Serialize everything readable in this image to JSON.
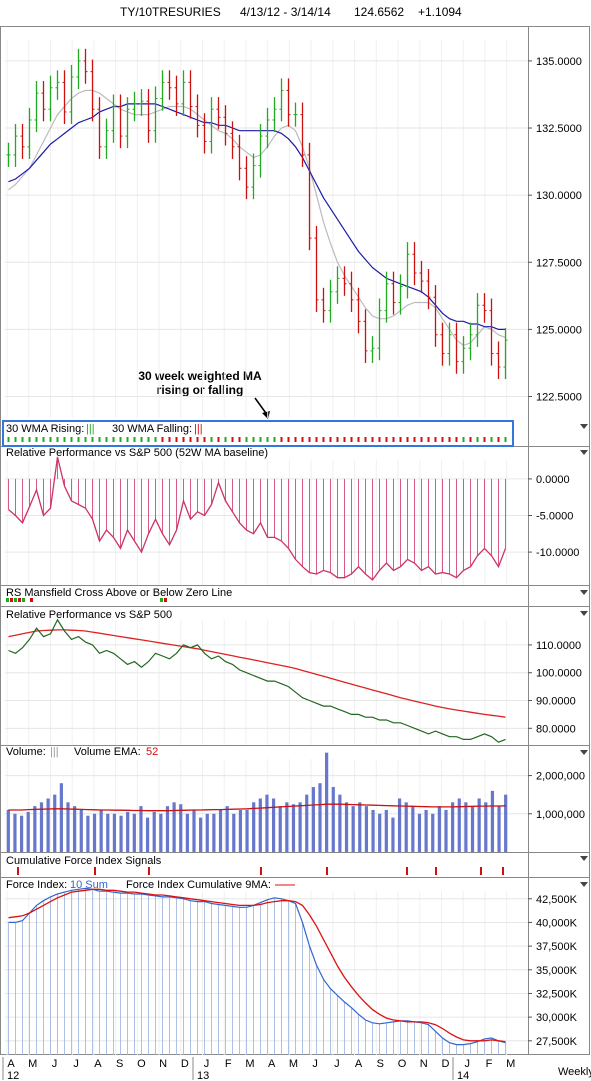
{
  "header": {
    "symbol": "TY/10TRESURIES",
    "range": "4/13/12 - 3/14/14",
    "price": "124.6562",
    "change": "+1.1094"
  },
  "annotation": {
    "line1": "30 week weighted MA",
    "line2": "rising or falling"
  },
  "colors": {
    "up": "#22aa22",
    "down": "#cc1111",
    "ma30": "#1a1aaa",
    "ma10": "#bbbbbb",
    "rs": "#cc3366",
    "rs_ma": "#dd2222",
    "rs_line": "#226622",
    "vol": "#6677cc",
    "vol_ema": "#cc1111",
    "fi": "#3366cc",
    "fi_ma": "#dd1111",
    "wma_box": "#3377dd"
  },
  "panels": {
    "wma": {
      "rising_label": "30 WMA Rising:",
      "rising_glyph": "|||",
      "falling_label": "30 WMA Falling:",
      "falling_glyph": "|||"
    },
    "rs52": {
      "title": "Relative Performance vs S&P 500 (52W MA baseline)"
    },
    "mansfield": {
      "title": "RS Mansfield Cross Above or Below Zero Line"
    },
    "rs": {
      "title": "Relative Performance vs S&P 500"
    },
    "volume": {
      "title": "Volume:",
      "glyph": "|||",
      "ema_label": "Volume EMA:",
      "ema_value": "52"
    },
    "cfis": {
      "title": "Cumulative Force Index Signals"
    },
    "fi": {
      "title": "Force Index:",
      "sum": "10 Sum",
      "ma_label": "Force Index Cumulative 9MA:"
    }
  },
  "xaxis": {
    "months": [
      "A",
      "M",
      "J",
      "J",
      "A",
      "S",
      "O",
      "N",
      "D",
      "J",
      "F",
      "M",
      "A",
      "M",
      "J",
      "J",
      "A",
      "S",
      "O",
      "N",
      "D",
      "J",
      "F",
      "M"
    ],
    "years": [
      "12",
      "13",
      "14"
    ],
    "period": "Weekly"
  },
  "chart_data": [
    {
      "type": "ohlc",
      "title": "TY/10TRESURIES",
      "ticks": [
        "135.0000",
        "132.5000",
        "130.0000",
        "127.5000",
        "125.0000",
        "122.5000"
      ],
      "tick_values": [
        135,
        132.5,
        130,
        127.5,
        125,
        122.5
      ],
      "ylim": [
        121.7,
        136.3
      ],
      "close": [
        131.5,
        132.2,
        131.8,
        132.8,
        133.8,
        133.2,
        134.0,
        134.2,
        133.1,
        134.4,
        135.0,
        134.6,
        133.2,
        131.8,
        132.4,
        133.3,
        132.2,
        133.2,
        133.4,
        133.5,
        132.4,
        133.6,
        134.2,
        134.0,
        133.4,
        134.2,
        133.3,
        132.6,
        132.0,
        133.2,
        132.9,
        132.3,
        131.8,
        131.0,
        130.3,
        131.1,
        132.2,
        132.8,
        133.2,
        133.9,
        133.0,
        133.0,
        131.5,
        128.4,
        126.1,
        125.7,
        126.4,
        126.9,
        126.7,
        126.1,
        125.3,
        124.2,
        124.3,
        125.7,
        126.7,
        126.0,
        126.6,
        127.8,
        127.1,
        126.8,
        126.2,
        124.8,
        124.1,
        124.8,
        123.8,
        124.3,
        124.8,
        125.9,
        125.7,
        124.1,
        123.6,
        124.6
      ],
      "ma30": [
        130.5,
        130.6,
        130.8,
        131.0,
        131.3,
        131.6,
        131.9,
        132.1,
        132.3,
        132.5,
        132.7,
        132.8,
        132.9,
        133.1,
        133.2,
        133.3,
        133.3,
        133.4,
        133.4,
        133.4,
        133.4,
        133.4,
        133.3,
        133.2,
        133.1,
        133.0,
        132.9,
        132.8,
        132.7,
        132.7,
        132.6,
        132.6,
        132.5,
        132.4,
        132.4,
        132.4,
        132.4,
        132.4,
        132.4,
        132.3,
        132.1,
        131.8,
        131.4,
        130.9,
        130.4,
        129.9,
        129.5,
        129.1,
        128.7,
        128.3,
        127.9,
        127.6,
        127.3,
        127.1,
        126.9,
        126.8,
        126.7,
        126.6,
        126.5,
        126.4,
        126.2,
        125.9,
        125.6,
        125.4,
        125.3,
        125.3,
        125.2,
        125.2,
        125.1,
        125.1,
        125.0,
        125.0
      ],
      "ma10": [
        130.2,
        130.4,
        130.7,
        131.0,
        131.5,
        132.0,
        132.5,
        133.0,
        133.3,
        133.6,
        133.8,
        133.9,
        133.9,
        133.8,
        133.6,
        133.4,
        133.2,
        133.1,
        133.0,
        133.0,
        133.0,
        133.1,
        133.2,
        133.3,
        133.3,
        133.3,
        133.2,
        133.0,
        132.8,
        132.6,
        132.4,
        132.3,
        132.1,
        131.8,
        131.6,
        131.4,
        131.5,
        131.8,
        132.2,
        132.5,
        132.6,
        132.4,
        131.8,
        131.0,
        130.0,
        129.0,
        128.2,
        127.5,
        127.0,
        126.6,
        126.2,
        125.8,
        125.5,
        125.4,
        125.4,
        125.5,
        125.7,
        125.9,
        126.0,
        126.0,
        126.0,
        125.8,
        125.4,
        125.0,
        124.6,
        124.4,
        124.5,
        124.8,
        125.1,
        125.0,
        124.8,
        124.7
      ]
    },
    {
      "type": "bar",
      "title": "Relative Performance vs S&P 500 (52W MA baseline)",
      "ticks": [
        "0.0000",
        "-5.0000",
        "-10.0000"
      ],
      "tick_values": [
        0,
        -5,
        -10
      ],
      "ylim": [
        -14.5,
        4.5
      ],
      "values": [
        -4.2,
        -5.0,
        -6.0,
        -3.8,
        -1.5,
        -5.0,
        -4.0,
        3.0,
        -1.0,
        -3.0,
        -3.5,
        -4.0,
        -5.5,
        -8.5,
        -7.0,
        -8.0,
        -9.5,
        -7.0,
        -8.5,
        -10.0,
        -7.5,
        -5.5,
        -7.5,
        -9.0,
        -7.0,
        -3.0,
        -5.5,
        -4.5,
        -5.0,
        -3.5,
        -0.5,
        -3.0,
        -4.5,
        -6.0,
        -7.0,
        -7.5,
        -6.0,
        -8.0,
        -8.0,
        -8.5,
        -9.5,
        -11.0,
        -12.0,
        -12.8,
        -13.0,
        -12.5,
        -12.8,
        -13.5,
        -13.5,
        -13.0,
        -12.0,
        -13.0,
        -13.8,
        -12.5,
        -11.5,
        -12.5,
        -12.0,
        -11.0,
        -11.5,
        -12.5,
        -12.0,
        -13.0,
        -12.8,
        -13.0,
        -13.5,
        -12.5,
        -12.0,
        -10.5,
        -9.5,
        -10.5,
        -12.0,
        -9.5
      ]
    },
    {
      "type": "signal",
      "title": "RS Mansfield Cross Above or Below Zero Line"
    },
    {
      "type": "line",
      "title": "Relative Performance vs S&P 500",
      "ticks": [
        "110.0000",
        "100.0000",
        "90.0000",
        "80.0000"
      ],
      "tick_values": [
        110,
        100,
        90,
        80
      ],
      "ylim": [
        74,
        124
      ],
      "series": [
        {
          "values": [
            108,
            107,
            109,
            112,
            116,
            113,
            114,
            119,
            115,
            112,
            113,
            111,
            110,
            107,
            108,
            107,
            105,
            103,
            104,
            102,
            104,
            107,
            106,
            105,
            107,
            110,
            109,
            110,
            107,
            105,
            106,
            104,
            103,
            101,
            100,
            99,
            98,
            97,
            97,
            96,
            95,
            93,
            91,
            90,
            89,
            88,
            88,
            87,
            86,
            85,
            85,
            84,
            84,
            83,
            83,
            82,
            82,
            81,
            80,
            79,
            78,
            79,
            78,
            77,
            77,
            76,
            76,
            77,
            78,
            77,
            75,
            76
          ]
        },
        {
          "values": [
            113,
            113.5,
            114,
            114.5,
            115,
            115.2,
            115.3,
            115.4,
            115.4,
            115.3,
            115.2,
            115,
            114.6,
            114.2,
            113.8,
            113.4,
            113,
            112.6,
            112.2,
            111.8,
            111.4,
            111,
            110.6,
            110.2,
            109.8,
            109.4,
            109,
            108.6,
            108.1,
            107.6,
            107.1,
            106.6,
            106.1,
            105.6,
            105.1,
            104.6,
            104.1,
            103.6,
            103.1,
            102.6,
            102.1,
            101.5,
            100.8,
            100.1,
            99.4,
            98.7,
            98,
            97.3,
            96.6,
            95.9,
            95.2,
            94.5,
            93.8,
            93.1,
            92.4,
            91.7,
            91,
            90.4,
            89.8,
            89.2,
            88.6,
            88,
            87.5,
            87,
            86.6,
            86.2,
            85.8,
            85.4,
            85,
            84.7,
            84.4,
            84
          ]
        }
      ]
    },
    {
      "type": "bar",
      "title": "Volume",
      "ticks": [
        "2,000,000",
        "1,000,000"
      ],
      "tick_values": [
        2000000,
        1000000
      ],
      "ylim": [
        0,
        2800000
      ],
      "values": [
        1100000,
        1000000,
        950000,
        1050000,
        1200000,
        1300000,
        1400000,
        1500000,
        1800000,
        1300000,
        1200000,
        1100000,
        950000,
        1000000,
        1100000,
        1000000,
        1000000,
        950000,
        1050000,
        1000000,
        1200000,
        900000,
        1050000,
        1000000,
        1200000,
        1300000,
        1250000,
        1000000,
        1100000,
        900000,
        1000000,
        1000000,
        1100000,
        1200000,
        1000000,
        1100000,
        1100000,
        1300000,
        1400000,
        1500000,
        1400000,
        1200000,
        1300000,
        1250000,
        1300000,
        1500000,
        1700000,
        1800000,
        2600000,
        1700000,
        1500000,
        1300000,
        1200000,
        1300000,
        1200000,
        1100000,
        1000000,
        1100000,
        900000,
        1400000,
        1300000,
        1200000,
        1000000,
        1100000,
        1000000,
        1200000,
        1100000,
        1300000,
        1400000,
        1300000,
        1200000,
        1400000,
        1300000,
        1600000,
        1200000,
        1500000
      ],
      "ema": [
        1100000,
        1100000,
        1100000,
        1110000,
        1115000,
        1120000,
        1125000,
        1130000,
        1130000,
        1125000,
        1120000,
        1115000,
        1110000,
        1105000,
        1100000,
        1100000,
        1095000,
        1095000,
        1090000,
        1085000,
        1085000,
        1080000,
        1080000,
        1080000,
        1080000,
        1085000,
        1090000,
        1095000,
        1100000,
        1100000,
        1105000,
        1110000,
        1110000,
        1115000,
        1120000,
        1125000,
        1130000,
        1140000,
        1150000,
        1160000,
        1170000,
        1180000,
        1190000,
        1200000,
        1210000,
        1220000,
        1230000,
        1240000,
        1250000,
        1250000,
        1250000,
        1245000,
        1240000,
        1235000,
        1230000,
        1225000,
        1220000,
        1215000,
        1210000,
        1205000,
        1200000,
        1195000,
        1190000,
        1185000,
        1180000,
        1180000,
        1180000,
        1180000,
        1185000,
        1190000,
        1195000,
        1200000,
        1200000,
        1205000,
        1205000,
        1210000
      ]
    },
    {
      "type": "signal",
      "title": "Cumulative Force Index Signals"
    },
    {
      "type": "line",
      "title": "Force Index",
      "ticks": [
        "42,500K",
        "40,000K",
        "37,500K",
        "35,000K",
        "32,500K",
        "30,000K",
        "27,500K"
      ],
      "tick_values": [
        42500,
        40000,
        37500,
        35000,
        32500,
        30000,
        27500
      ],
      "ylim": [
        26000,
        44800
      ],
      "series": [
        {
          "name": "10 Sum",
          "values": [
            40000,
            40000,
            40200,
            41000,
            41800,
            42300,
            42700,
            43000,
            43200,
            43400,
            43500,
            43600,
            43500,
            43300,
            43300,
            43200,
            43100,
            43100,
            43000,
            43000,
            42900,
            42800,
            42700,
            42700,
            42600,
            42500,
            42300,
            42200,
            42200,
            42000,
            41900,
            41800,
            41700,
            41600,
            41600,
            41800,
            42100,
            42400,
            42600,
            42500,
            42300,
            42000,
            40000,
            37500,
            35500,
            34000,
            33000,
            32300,
            31600,
            31000,
            30300,
            29700,
            29400,
            29300,
            29400,
            29500,
            29600,
            29600,
            29500,
            29400,
            29200,
            28500,
            27800,
            27300,
            27100,
            27100,
            27200,
            27400,
            27700,
            27800,
            27500,
            27300
          ]
        },
        {
          "name": "Force Index Cumulative 9MA",
          "values": [
            40500,
            40600,
            40700,
            41000,
            41400,
            41800,
            42200,
            42600,
            42900,
            43200,
            43300,
            43400,
            43500,
            43500,
            43400,
            43400,
            43300,
            43200,
            43200,
            43100,
            43000,
            42900,
            42900,
            42800,
            42700,
            42600,
            42500,
            42400,
            42300,
            42200,
            42100,
            42000,
            41900,
            41800,
            41800,
            41800,
            41900,
            42100,
            42200,
            42300,
            42300,
            42200,
            41800,
            40800,
            39600,
            38200,
            36800,
            35400,
            34200,
            33200,
            32300,
            31500,
            30800,
            30300,
            29900,
            29700,
            29600,
            29500,
            29500,
            29500,
            29400,
            29200,
            28800,
            28300,
            27900,
            27600,
            27500,
            27500,
            27500,
            27600,
            27500,
            27400
          ]
        }
      ]
    }
  ]
}
